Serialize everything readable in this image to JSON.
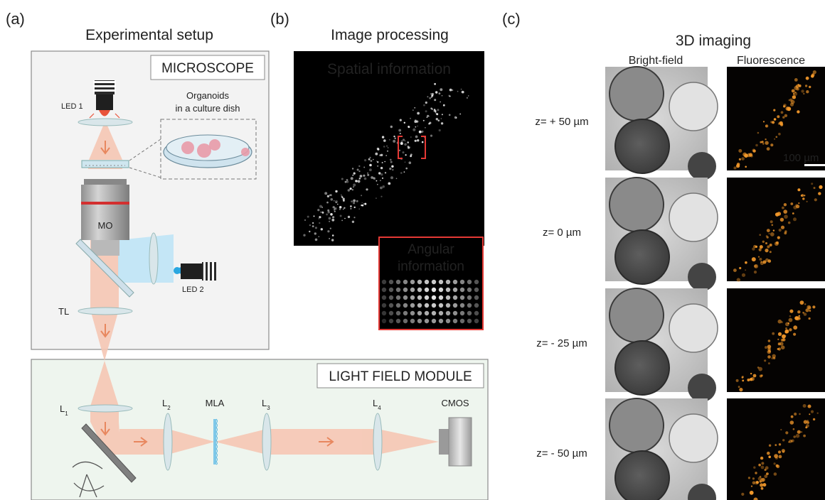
{
  "panels": {
    "a": {
      "letter": "(a)",
      "title": "Experimental setup"
    },
    "b": {
      "letter": "(b)",
      "title": "Image processing"
    },
    "c": {
      "letter": "(c)",
      "title": "3D imaging"
    }
  },
  "microscope": {
    "box_label": "MICROSCOPE",
    "led1": "LED 1",
    "led2": "LED 2",
    "organoids_line1": "Organoids",
    "organoids_line2": "in a culture dish",
    "objective": "MO",
    "tube_lens": "TL"
  },
  "lightfield": {
    "box_label": "LIGHT FIELD MODULE",
    "l1": "L",
    "l1_sub": "1",
    "l2": "L",
    "l2_sub": "2",
    "mla": "MLA",
    "l3": "L",
    "l3_sub": "3",
    "l4": "L",
    "l4_sub": "4",
    "camera": "CMOS"
  },
  "processing": {
    "spatial": "Spatial information",
    "angular_line1": "Angular",
    "angular_line2": "information"
  },
  "imaging": {
    "col_brightfield": "Bright-field",
    "col_fluorescence": "Fluorescence",
    "scale_bar": "100 µm",
    "rows": [
      {
        "z": "z= + 50 µm"
      },
      {
        "z": "z= 0 µm"
      },
      {
        "z": "z= - 25 µm"
      },
      {
        "z": "z= - 50 µm"
      }
    ]
  },
  "colors": {
    "beam": "#f6c7b4",
    "led_blue": "#2aa7e0",
    "led_red": "#e8533a",
    "red_marker": "#e53935",
    "fluor": "#f59a2b"
  }
}
